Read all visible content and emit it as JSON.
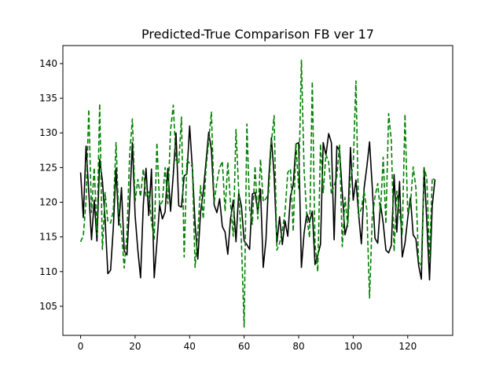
{
  "chart_data": {
    "type": "line",
    "title": "Predicted-True Comparison FB ver 17",
    "xlabel": "",
    "ylabel": "",
    "xlim": [
      -6.5,
      136.5
    ],
    "ylim": [
      100.8,
      142.6
    ],
    "xticks": [
      0,
      20,
      40,
      60,
      80,
      100,
      120
    ],
    "yticks": [
      105,
      110,
      115,
      120,
      125,
      130,
      135,
      140
    ],
    "grid": false,
    "legend": "none",
    "series": [
      {
        "color": "#000000",
        "linestyle": "solid",
        "x": [
          0,
          1,
          2,
          3,
          4,
          5,
          6,
          7,
          8,
          9,
          10,
          11,
          12,
          13,
          14,
          15,
          16,
          17,
          18,
          19,
          20,
          21,
          22,
          23,
          24,
          25,
          26,
          27,
          28,
          29,
          30,
          31,
          32,
          33,
          34,
          35,
          36,
          37,
          38,
          39,
          40,
          41,
          42,
          43,
          44,
          45,
          46,
          47,
          48,
          49,
          50,
          51,
          52,
          53,
          54,
          55,
          56,
          57,
          58,
          59,
          60,
          61,
          62,
          63,
          64,
          65,
          66,
          67,
          68,
          69,
          70,
          71,
          72,
          73,
          74,
          75,
          76,
          77,
          78,
          79,
          80,
          81,
          82,
          83,
          84,
          85,
          86,
          87,
          88,
          89,
          90,
          91,
          92,
          93,
          94,
          95,
          96,
          97,
          98,
          99,
          100,
          101,
          102,
          103,
          104,
          105,
          106,
          107,
          108,
          109,
          110,
          111,
          112,
          113,
          114,
          115,
          116,
          117,
          118,
          119,
          120,
          121,
          122,
          123,
          124,
          125,
          126,
          127,
          128,
          129,
          130
        ],
        "y": [
          124.3,
          117.8,
          128.1,
          121.5,
          114.6,
          120.3,
          114.4,
          126.2,
          123.1,
          117.5,
          109.7,
          110.2,
          116.3,
          124.9,
          116.7,
          122.1,
          113.0,
          112.4,
          119.8,
          128.6,
          118.1,
          113.1,
          109.1,
          119.6,
          124.9,
          118.1,
          124.8,
          109.1,
          114.2,
          119.6,
          117.6,
          118.6,
          124.9,
          118.7,
          124.0,
          130.0,
          119.5,
          119.3,
          123.8,
          124.1,
          131.0,
          124.9,
          116.9,
          111.8,
          118.5,
          121.5,
          125.8,
          130.1,
          127.5,
          119.6,
          118.5,
          120.5,
          116.5,
          115.7,
          112.5,
          117.6,
          120.3,
          114.3,
          121.3,
          119.4,
          114.4,
          113.9,
          113.2,
          121.2,
          121.4,
          118.6,
          121.9,
          110.6,
          114.6,
          123.3,
          129.3,
          123.8,
          114.1,
          117.9,
          113.9,
          117.3,
          115.1,
          120.9,
          122.5,
          128.4,
          128.6,
          110.6,
          115.6,
          118.4,
          117.1,
          118.7,
          111.0,
          112.4,
          113.9,
          128.6,
          126.8,
          129.9,
          128.6,
          114.6,
          128.1,
          127.4,
          121.4,
          115.3,
          117.0,
          127.9,
          120.3,
          123.2,
          118.2,
          114.0,
          122.0,
          125.1,
          128.7,
          122.1,
          114.8,
          114.1,
          119.8,
          117.0,
          113.1,
          112.7,
          113.8,
          124.0,
          115.7,
          123.0,
          112.1,
          114.1,
          117.7,
          120.7,
          115.3,
          114.7,
          110.9,
          108.9,
          125.0,
          117.2,
          108.8,
          119.5,
          123.3
        ]
      },
      {
        "color": "#008000",
        "linestyle": "dashed",
        "x": [
          0,
          1,
          2,
          3,
          4,
          5,
          6,
          7,
          8,
          9,
          10,
          11,
          12,
          13,
          14,
          15,
          16,
          17,
          18,
          19,
          20,
          21,
          22,
          23,
          24,
          25,
          26,
          27,
          28,
          29,
          30,
          31,
          32,
          33,
          34,
          35,
          36,
          37,
          38,
          39,
          40,
          41,
          42,
          43,
          44,
          45,
          46,
          47,
          48,
          49,
          50,
          51,
          52,
          53,
          54,
          55,
          56,
          57,
          58,
          59,
          60,
          61,
          62,
          63,
          64,
          65,
          66,
          67,
          68,
          69,
          70,
          71,
          72,
          73,
          74,
          75,
          76,
          77,
          78,
          79,
          80,
          81,
          82,
          83,
          84,
          85,
          86,
          87,
          88,
          89,
          90,
          91,
          92,
          93,
          94,
          95,
          96,
          97,
          98,
          99,
          100,
          101,
          102,
          103,
          104,
          105,
          106,
          107,
          108,
          109,
          110,
          111,
          112,
          113,
          114,
          115,
          116,
          117,
          118,
          119,
          120,
          121,
          122,
          123,
          124,
          125,
          126,
          127,
          128,
          129,
          130
        ],
        "y": [
          114.3,
          115.2,
          120.2,
          133.4,
          118.5,
          125.0,
          115.3,
          134.2,
          113.2,
          121.4,
          117.2,
          117.0,
          118.8,
          128.6,
          118.2,
          115.8,
          110.5,
          115.4,
          126.9,
          132.0,
          120.1,
          123.3,
          120.8,
          124.8,
          120.8,
          121.5,
          117.2,
          114.7,
          128.6,
          119.5,
          120.1,
          125.0,
          119.8,
          130.4,
          134.0,
          126.1,
          125.5,
          132.3,
          112.1,
          126.1,
          125.6,
          125.1,
          110.6,
          115.6,
          122.4,
          117.6,
          124.8,
          128.9,
          133.0,
          119.9,
          122.9,
          125.0,
          125.9,
          118.7,
          125.8,
          119.8,
          115.1,
          130.5,
          121.6,
          114.2,
          102.0,
          131.3,
          119.0,
          116.8,
          125.2,
          117.6,
          126.2,
          120.1,
          120.5,
          121.4,
          128.7,
          132.5,
          113.1,
          114.1,
          115.9,
          118.6,
          124.3,
          124.8,
          115.8,
          128.4,
          122.0,
          140.5,
          124.5,
          117.8,
          114.9,
          137.4,
          113.9,
          110.0,
          128.4,
          121.4,
          126.9,
          125.8,
          121.2,
          122.4,
          123.7,
          128.4,
          113.6,
          120.7,
          116.5,
          123.7,
          125.1,
          137.5,
          118.0,
          119.1,
          121.6,
          118.9,
          106.2,
          117.9,
          120.8,
          122.7,
          118.5,
          126.5,
          116.9,
          132.8,
          128.8,
          112.9,
          121.6,
          118.6,
          115.3,
          132.7,
          118.4,
          119.7,
          125.1,
          122.1,
          111.4,
          110.9,
          125.0,
          123.5,
          111.8,
          123.5,
          123.2
        ]
      }
    ]
  }
}
